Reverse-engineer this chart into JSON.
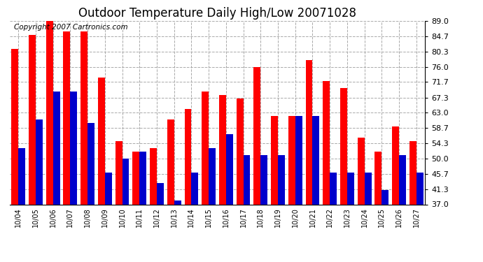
{
  "title": "Outdoor Temperature Daily High/Low 20071028",
  "copyright": "Copyright 2007 Cartronics.com",
  "dates": [
    "10/04",
    "10/05",
    "10/06",
    "10/07",
    "10/08",
    "10/09",
    "10/10",
    "10/11",
    "10/12",
    "10/13",
    "10/14",
    "10/15",
    "10/16",
    "10/17",
    "10/18",
    "10/19",
    "10/20",
    "10/21",
    "10/22",
    "10/23",
    "10/24",
    "10/25",
    "10/26",
    "10/27"
  ],
  "highs": [
    81,
    85,
    89,
    86,
    86,
    73,
    55,
    52,
    53,
    61,
    64,
    69,
    68,
    67,
    76,
    62,
    62,
    78,
    72,
    70,
    56,
    52,
    59,
    55
  ],
  "lows": [
    53,
    61,
    69,
    69,
    60,
    46,
    50,
    52,
    43,
    38,
    46,
    53,
    57,
    51,
    51,
    51,
    62,
    62,
    46,
    46,
    46,
    41,
    51,
    46
  ],
  "high_color": "#ff0000",
  "low_color": "#0000cc",
  "bg_color": "#ffffff",
  "grid_color": "#aaaaaa",
  "yticks": [
    37.0,
    41.3,
    45.7,
    50.0,
    54.3,
    58.7,
    63.0,
    67.3,
    71.7,
    76.0,
    80.3,
    84.7,
    89.0
  ],
  "ylim": [
    37.0,
    89.0
  ],
  "title_fontsize": 12,
  "copyright_fontsize": 7.5,
  "bar_width": 0.4,
  "figure_width": 6.9,
  "figure_height": 3.75,
  "dpi": 100
}
